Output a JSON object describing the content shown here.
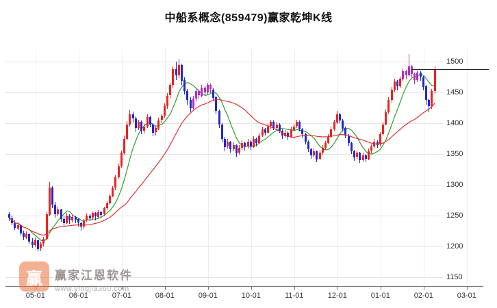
{
  "title": "中船系概念(859479)赢家乾坤K线",
  "watermark": {
    "brand": "赢家江恩软件",
    "url": "www.yingjia360.com",
    "logo_char": "赢"
  },
  "colors": {
    "up": "#ee2222",
    "down": "#2228cc",
    "tone_purple": "#b030c0",
    "ma_slow": "#e03030",
    "ma_fast": "#2a9f2a",
    "grid": "#e4e4e4",
    "grid_v": "#ededed",
    "axis": "#777777",
    "label": "#333333",
    "price_line": "#222222"
  },
  "chart_data": {
    "type": "candlestick",
    "title": "中船系概念(859479)赢家乾坤K线",
    "y_axis": {
      "ticks": [
        1500,
        1450,
        1400,
        1350,
        1300,
        1250,
        1200,
        1150
      ],
      "min": 1150,
      "max": 1500
    },
    "x_axis": {
      "ticks": [
        {
          "label": "05-01",
          "i": 9
        },
        {
          "label": "06-01",
          "i": 24
        },
        {
          "label": "07-01",
          "i": 39
        },
        {
          "label": "08-01",
          "i": 54
        },
        {
          "label": "09-01",
          "i": 69
        },
        {
          "label": "10-01",
          "i": 84
        },
        {
          "label": "11-01",
          "i": 99
        },
        {
          "label": "12-01",
          "i": 114
        },
        {
          "label": "01-01",
          "i": 129
        },
        {
          "label": "02-01",
          "i": 144
        },
        {
          "label": "03-01",
          "i": 159
        }
      ]
    },
    "price_line": 1488,
    "last_close": 1488,
    "ma": {
      "slow_period": 26,
      "fast_period": 8
    },
    "purple_ranges": [
      [
        64,
        70
      ],
      [
        137,
        142
      ]
    ],
    "candles": [
      [
        1252,
        1256,
        1242,
        1246
      ],
      [
        1246,
        1250,
        1234,
        1238
      ],
      [
        1238,
        1242,
        1226,
        1230
      ],
      [
        1230,
        1239,
        1227,
        1235
      ],
      [
        1235,
        1236,
        1218,
        1222
      ],
      [
        1222,
        1226,
        1210,
        1215
      ],
      [
        1215,
        1224,
        1212,
        1220
      ],
      [
        1220,
        1221,
        1204,
        1208
      ],
      [
        1208,
        1213,
        1197,
        1202
      ],
      [
        1202,
        1214,
        1199,
        1210
      ],
      [
        1210,
        1211,
        1192,
        1196
      ],
      [
        1196,
        1208,
        1193,
        1204
      ],
      [
        1204,
        1216,
        1201,
        1212
      ],
      [
        1212,
        1256,
        1210,
        1252
      ],
      [
        1252,
        1305,
        1250,
        1296
      ],
      [
        1296,
        1298,
        1262,
        1268
      ],
      [
        1268,
        1272,
        1246,
        1252
      ],
      [
        1252,
        1265,
        1249,
        1260
      ],
      [
        1260,
        1261,
        1240,
        1245
      ],
      [
        1245,
        1249,
        1232,
        1238
      ],
      [
        1238,
        1254,
        1236,
        1250
      ],
      [
        1250,
        1252,
        1237,
        1242
      ],
      [
        1242,
        1252,
        1239,
        1248
      ],
      [
        1248,
        1250,
        1238,
        1244
      ],
      [
        1244,
        1246,
        1233,
        1238
      ],
      [
        1238,
        1240,
        1226,
        1232
      ],
      [
        1232,
        1245,
        1230,
        1242
      ],
      [
        1242,
        1253,
        1240,
        1250
      ],
      [
        1250,
        1252,
        1241,
        1246
      ],
      [
        1246,
        1257,
        1244,
        1254
      ],
      [
        1254,
        1256,
        1243,
        1248
      ],
      [
        1248,
        1259,
        1246,
        1256
      ],
      [
        1256,
        1258,
        1247,
        1252
      ],
      [
        1252,
        1265,
        1250,
        1262
      ],
      [
        1262,
        1273,
        1259,
        1270
      ],
      [
        1270,
        1285,
        1268,
        1282
      ],
      [
        1282,
        1298,
        1280,
        1295
      ],
      [
        1295,
        1316,
        1292,
        1312
      ],
      [
        1312,
        1334,
        1309,
        1330
      ],
      [
        1330,
        1356,
        1328,
        1352
      ],
      [
        1352,
        1380,
        1349,
        1375
      ],
      [
        1375,
        1403,
        1372,
        1398
      ],
      [
        1398,
        1421,
        1394,
        1415
      ],
      [
        1415,
        1419,
        1401,
        1408
      ],
      [
        1408,
        1411,
        1386,
        1392
      ],
      [
        1392,
        1406,
        1389,
        1402
      ],
      [
        1402,
        1404,
        1382,
        1388
      ],
      [
        1388,
        1399,
        1384,
        1395
      ],
      [
        1395,
        1414,
        1392,
        1410
      ],
      [
        1410,
        1412,
        1393,
        1398
      ],
      [
        1398,
        1400,
        1379,
        1385
      ],
      [
        1385,
        1396,
        1381,
        1392
      ],
      [
        1392,
        1409,
        1389,
        1405
      ],
      [
        1405,
        1416,
        1400,
        1412
      ],
      [
        1412,
        1432,
        1409,
        1428
      ],
      [
        1428,
        1449,
        1424,
        1445
      ],
      [
        1445,
        1466,
        1441,
        1462
      ],
      [
        1462,
        1492,
        1458,
        1488
      ],
      [
        1488,
        1500,
        1470,
        1478
      ],
      [
        1478,
        1505,
        1474,
        1495
      ],
      [
        1495,
        1497,
        1463,
        1470
      ],
      [
        1470,
        1474,
        1446,
        1452
      ],
      [
        1452,
        1456,
        1431,
        1438
      ],
      [
        1438,
        1442,
        1418,
        1425
      ],
      [
        1425,
        1444,
        1422,
        1440
      ],
      [
        1440,
        1456,
        1436,
        1452
      ],
      [
        1452,
        1455,
        1439,
        1445
      ],
      [
        1445,
        1462,
        1442,
        1458
      ],
      [
        1458,
        1460,
        1444,
        1450
      ],
      [
        1450,
        1466,
        1447,
        1462
      ],
      [
        1462,
        1464,
        1449,
        1455
      ],
      [
        1455,
        1457,
        1436,
        1442
      ],
      [
        1442,
        1444,
        1414,
        1420
      ],
      [
        1420,
        1422,
        1392,
        1398
      ],
      [
        1398,
        1400,
        1369,
        1375
      ],
      [
        1375,
        1378,
        1355,
        1362
      ],
      [
        1362,
        1374,
        1359,
        1370
      ],
      [
        1370,
        1371,
        1352,
        1358
      ],
      [
        1358,
        1369,
        1355,
        1365
      ],
      [
        1365,
        1366,
        1346,
        1352
      ],
      [
        1352,
        1364,
        1349,
        1360
      ],
      [
        1360,
        1372,
        1357,
        1368
      ],
      [
        1368,
        1370,
        1356,
        1362
      ],
      [
        1362,
        1374,
        1359,
        1370
      ],
      [
        1370,
        1372,
        1357,
        1362
      ],
      [
        1362,
        1379,
        1360,
        1375
      ],
      [
        1375,
        1377,
        1363,
        1368
      ],
      [
        1368,
        1384,
        1366,
        1380
      ],
      [
        1380,
        1394,
        1377,
        1390
      ],
      [
        1390,
        1392,
        1380,
        1385
      ],
      [
        1385,
        1399,
        1383,
        1395
      ],
      [
        1395,
        1406,
        1392,
        1402
      ],
      [
        1402,
        1404,
        1388,
        1392
      ],
      [
        1392,
        1402,
        1390,
        1398
      ],
      [
        1398,
        1400,
        1384,
        1388
      ],
      [
        1388,
        1390,
        1375,
        1380
      ],
      [
        1380,
        1389,
        1377,
        1385
      ],
      [
        1385,
        1387,
        1373,
        1378
      ],
      [
        1378,
        1394,
        1376,
        1390
      ],
      [
        1390,
        1399,
        1387,
        1395
      ],
      [
        1395,
        1406,
        1393,
        1402
      ],
      [
        1402,
        1404,
        1386,
        1390
      ],
      [
        1390,
        1392,
        1377,
        1382
      ],
      [
        1382,
        1384,
        1365,
        1370
      ],
      [
        1370,
        1372,
        1353,
        1358
      ],
      [
        1358,
        1360,
        1342,
        1348
      ],
      [
        1348,
        1359,
        1345,
        1355
      ],
      [
        1355,
        1356,
        1337,
        1342
      ],
      [
        1342,
        1356,
        1340,
        1352
      ],
      [
        1352,
        1364,
        1349,
        1360
      ],
      [
        1360,
        1371,
        1357,
        1368
      ],
      [
        1368,
        1382,
        1366,
        1378
      ],
      [
        1378,
        1394,
        1375,
        1390
      ],
      [
        1390,
        1406,
        1388,
        1402
      ],
      [
        1402,
        1420,
        1399,
        1415
      ],
      [
        1415,
        1417,
        1400,
        1405
      ],
      [
        1405,
        1407,
        1387,
        1392
      ],
      [
        1392,
        1394,
        1375,
        1380
      ],
      [
        1380,
        1382,
        1363,
        1368
      ],
      [
        1368,
        1370,
        1350,
        1355
      ],
      [
        1355,
        1357,
        1339,
        1345
      ],
      [
        1345,
        1356,
        1342,
        1352
      ],
      [
        1352,
        1353,
        1335,
        1340
      ],
      [
        1340,
        1352,
        1338,
        1348
      ],
      [
        1348,
        1350,
        1337,
        1342
      ],
      [
        1342,
        1359,
        1340,
        1355
      ],
      [
        1355,
        1366,
        1352,
        1362
      ],
      [
        1362,
        1374,
        1359,
        1370
      ],
      [
        1370,
        1372,
        1360,
        1365
      ],
      [
        1365,
        1386,
        1363,
        1382
      ],
      [
        1382,
        1402,
        1380,
        1398
      ],
      [
        1398,
        1422,
        1396,
        1418
      ],
      [
        1418,
        1442,
        1415,
        1438
      ],
      [
        1438,
        1459,
        1434,
        1455
      ],
      [
        1455,
        1472,
        1451,
        1468
      ],
      [
        1468,
        1470,
        1453,
        1460
      ],
      [
        1460,
        1476,
        1457,
        1472
      ],
      [
        1472,
        1489,
        1468,
        1485
      ],
      [
        1485,
        1487,
        1471,
        1478
      ],
      [
        1478,
        1512,
        1475,
        1492
      ],
      [
        1492,
        1494,
        1474,
        1480
      ],
      [
        1480,
        1482,
        1463,
        1470
      ],
      [
        1470,
        1486,
        1467,
        1482
      ],
      [
        1482,
        1484,
        1468,
        1475
      ],
      [
        1475,
        1477,
        1454,
        1460
      ],
      [
        1460,
        1462,
        1430,
        1438
      ],
      [
        1438,
        1440,
        1418,
        1428
      ],
      [
        1428,
        1456,
        1424,
        1452
      ],
      [
        1452,
        1492,
        1448,
        1488
      ]
    ]
  }
}
